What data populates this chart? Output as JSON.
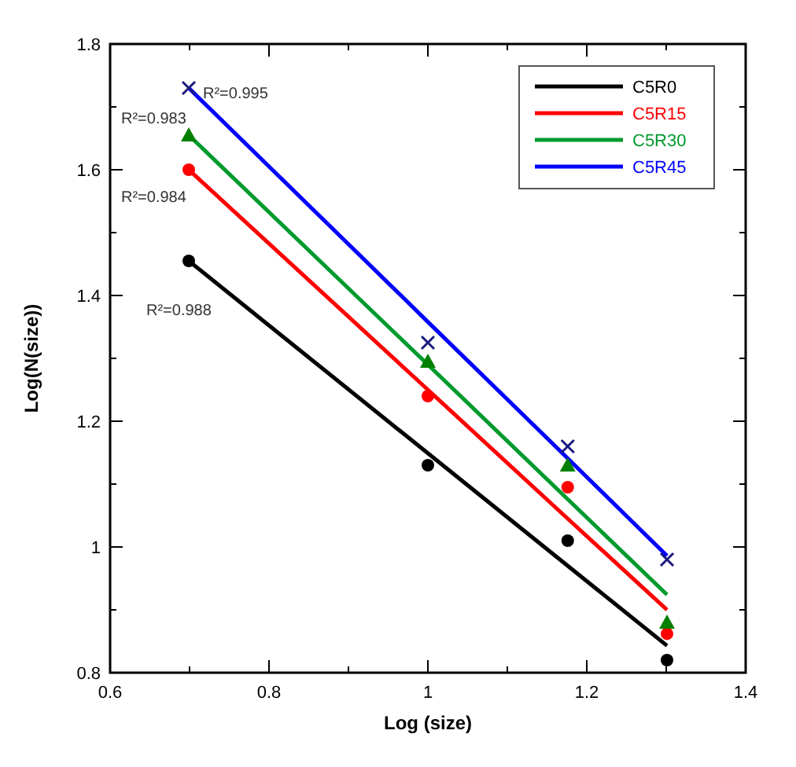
{
  "chart_data": {
    "type": "line",
    "xlabel": "Log (size)",
    "ylabel": "Log(N(size))",
    "xlim": [
      0.6,
      1.4
    ],
    "ylim": [
      0.8,
      1.8
    ],
    "xticks": [
      0.6,
      {
        "value": 0.7,
        "label": null
      },
      0.8,
      {
        "value": 0.9,
        "label": null
      },
      1,
      {
        "value": 1.1,
        "label": null
      },
      1.2,
      {
        "value": 1.3,
        "label": null
      },
      1.4
    ],
    "yticks": [
      0.8,
      {
        "value": 0.9,
        "label": null
      },
      1,
      {
        "value": 1.1,
        "label": null
      },
      1.2,
      {
        "value": 1.3,
        "label": null
      },
      1.4,
      {
        "value": 1.5,
        "label": null
      },
      1.6,
      {
        "value": 1.7,
        "label": null
      },
      1.8
    ],
    "grid": false,
    "legend": "top right",
    "series": [
      {
        "name": "C5R0",
        "color": "#000000",
        "x": [
          0.699,
          1,
          1.176,
          1.301
        ],
        "values": [
          1.455,
          1.149,
          0.97,
          0.843
        ]
      },
      {
        "name": "C5R15",
        "color": "#ff0000",
        "x": [
          0.699,
          1,
          1.176,
          1.301
        ],
        "values": [
          1.6,
          1.25,
          1.045,
          0.9
        ]
      },
      {
        "name": "C5R30",
        "color": "#009a2e",
        "x": [
          0.699,
          1,
          1.176,
          1.301
        ],
        "values": [
          1.655,
          1.29,
          1.076,
          0.924
        ]
      },
      {
        "name": "C5R45",
        "color": "#0000ff",
        "x": [
          0.699,
          1,
          1.176,
          1.301
        ],
        "values": [
          1.73,
          1.358,
          1.141,
          0.986
        ]
      },
      {
        "type": "scatter",
        "color": "#000000",
        "marker": "circle",
        "x": [
          0.699,
          1,
          1.176,
          1.301
        ],
        "values": [
          1.455,
          1.13,
          1.01,
          0.82
        ]
      },
      {
        "type": "scatter",
        "color": "#ff0000",
        "marker": "circle",
        "x": [
          0.699,
          1,
          1.176,
          1.301
        ],
        "values": [
          1.6,
          1.24,
          1.095,
          0.862
        ]
      },
      {
        "type": "scatter",
        "color": "#008000",
        "marker": "triangle",
        "x": [
          0.699,
          1,
          1.176,
          1.301
        ],
        "values": [
          1.655,
          1.295,
          1.13,
          0.88
        ]
      },
      {
        "type": "scatter",
        "color": "#1a1a80",
        "marker": "cross",
        "x": [
          0.699,
          1,
          1.176,
          1.301
        ],
        "values": [
          1.73,
          1.325,
          1.16,
          0.98
        ]
      }
    ],
    "annotations": [
      "R²=0.988",
      "R²=0.984",
      "R²=0.983",
      "R²=0.995"
    ]
  }
}
